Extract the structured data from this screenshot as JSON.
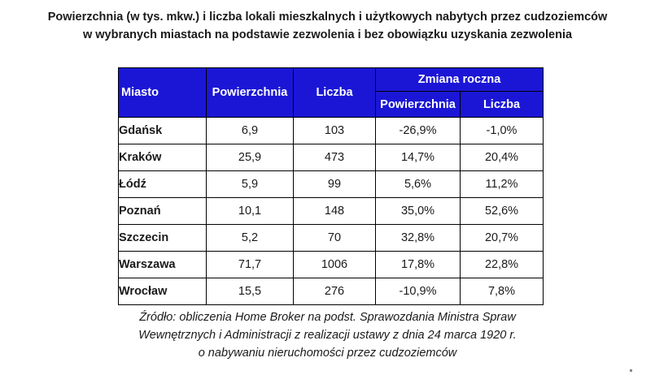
{
  "title": {
    "line1": "Powierzchnia (w tys. mkw.) i liczba lokali mieszkalnych i użytkowych nabytych przez cudzoziemców",
    "line2": "w wybranych miastach na podstawie zezwolenia i bez obowiązku uzyskania zezwolenia"
  },
  "table": {
    "headers": {
      "city": "Miasto",
      "area": "Powierzchnia",
      "count": "Liczba",
      "yoy_group": "Zmiana roczna",
      "yoy_area": "Powierzchnia",
      "yoy_count": "Liczba"
    },
    "rows": [
      {
        "city": "Gdańsk",
        "area": "6,9",
        "count": "103",
        "yoy_area": "-26,9%",
        "yoy_count": "-1,0%"
      },
      {
        "city": "Kraków",
        "area": "25,9",
        "count": "473",
        "yoy_area": "14,7%",
        "yoy_count": "20,4%"
      },
      {
        "city": "Łódź",
        "area": "5,9",
        "count": "99",
        "yoy_area": "5,6%",
        "yoy_count": "11,2%"
      },
      {
        "city": "Poznań",
        "area": "10,1",
        "count": "148",
        "yoy_area": "35,0%",
        "yoy_count": "52,6%"
      },
      {
        "city": "Szczecin",
        "area": "5,2",
        "count": "70",
        "yoy_area": "32,8%",
        "yoy_count": "20,7%"
      },
      {
        "city": "Warszawa",
        "area": "71,7",
        "count": "1006",
        "yoy_area": "17,8%",
        "yoy_count": "22,8%"
      },
      {
        "city": "Wrocław",
        "area": "15,5",
        "count": "276",
        "yoy_area": "-10,9%",
        "yoy_count": "7,8%"
      }
    ]
  },
  "source": {
    "line1": "Źródło: obliczenia Home Broker na podst. Sprawozdania Ministra Spraw",
    "line2": "Wewnętrznych i Administracji z realizacji ustawy z dnia 24 marca 1920 r.",
    "line3": "o nabywaniu nieruchomości przez cudzoziemców"
  },
  "colors": {
    "header_bg": "#1b16d6",
    "header_text": "#ffffff"
  }
}
